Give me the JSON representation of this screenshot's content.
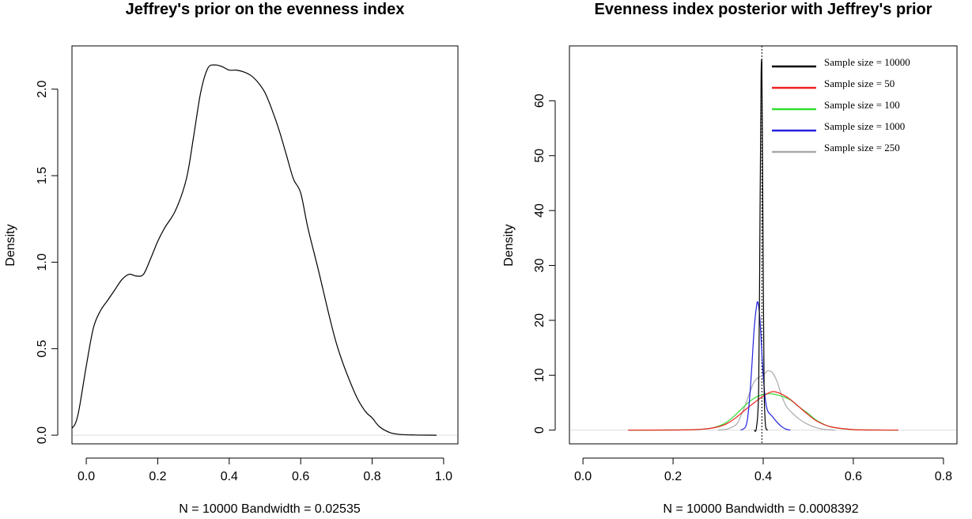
{
  "chart_data": [
    {
      "type": "line",
      "title": "Jeffrey's prior on the evenness index",
      "xlabel": "N = 10000   Bandwidth = 0.02535",
      "ylabel": "Density",
      "xlim": [
        -0.04,
        1.04
      ],
      "ylim": [
        -0.05,
        2.25
      ],
      "xticks": [
        0.0,
        0.2,
        0.4,
        0.6,
        0.8,
        1.0
      ],
      "xtick_labels": [
        "0.0",
        "0.2",
        "0.4",
        "0.6",
        "0.8",
        "1.0"
      ],
      "yticks": [
        0.0,
        0.5,
        1.0,
        1.5,
        2.0
      ],
      "ytick_labels": [
        "0.0",
        "0.5",
        "1.0",
        "1.5",
        "2.0"
      ],
      "baseline": 0,
      "series": [
        {
          "name": "density",
          "color": "#000000",
          "x": [
            -0.04,
            -0.03,
            -0.02,
            0.0,
            0.02,
            0.04,
            0.06,
            0.08,
            0.1,
            0.12,
            0.14,
            0.16,
            0.18,
            0.2,
            0.22,
            0.25,
            0.28,
            0.3,
            0.32,
            0.34,
            0.36,
            0.38,
            0.4,
            0.42,
            0.44,
            0.46,
            0.48,
            0.5,
            0.52,
            0.54,
            0.56,
            0.58,
            0.6,
            0.62,
            0.65,
            0.7,
            0.75,
            0.78,
            0.8,
            0.82,
            0.85,
            0.88,
            0.92,
            0.98
          ],
          "y": [
            0.04,
            0.07,
            0.15,
            0.4,
            0.62,
            0.72,
            0.78,
            0.84,
            0.9,
            0.93,
            0.92,
            0.93,
            1.02,
            1.12,
            1.2,
            1.3,
            1.48,
            1.72,
            1.98,
            2.12,
            2.14,
            2.13,
            2.11,
            2.11,
            2.1,
            2.08,
            2.04,
            1.98,
            1.88,
            1.76,
            1.62,
            1.48,
            1.4,
            1.2,
            0.95,
            0.53,
            0.25,
            0.14,
            0.1,
            0.05,
            0.015,
            0.004,
            0.001,
            0.0
          ]
        }
      ]
    },
    {
      "type": "line",
      "title": "Evenness index posterior with Jeffrey's prior",
      "xlabel": "N = 10000   Bandwidth = 0.0008392",
      "ylabel": "Density",
      "xlim": [
        -0.03,
        0.83
      ],
      "ylim": [
        -2.5,
        70
      ],
      "xticks": [
        0.0,
        0.2,
        0.4,
        0.6,
        0.8
      ],
      "xtick_labels": [
        "0.0",
        "0.2",
        "0.4",
        "0.6",
        "0.8"
      ],
      "yticks": [
        0,
        10,
        20,
        30,
        40,
        50,
        60
      ],
      "ytick_labels": [
        "0",
        "10",
        "20",
        "30",
        "40",
        "50",
        "60"
      ],
      "baseline": 0,
      "vline": {
        "x": 0.397,
        "style": "dotted"
      },
      "series": [
        {
          "name": "Sample size = 250",
          "color": "#aaaaaa",
          "x": [
            0.3,
            0.32,
            0.34,
            0.35,
            0.36,
            0.37,
            0.38,
            0.39,
            0.4,
            0.405,
            0.41,
            0.42,
            0.43,
            0.44,
            0.45,
            0.46,
            0.48,
            0.5,
            0.52,
            0.54,
            0.56
          ],
          "y": [
            0,
            0.2,
            1.0,
            2.5,
            4.5,
            6.8,
            8.8,
            9.6,
            10.0,
            10.4,
            10.8,
            10.5,
            9.0,
            6.5,
            4.5,
            3.5,
            2.0,
            1.0,
            0.4,
            0.1,
            0
          ]
        },
        {
          "name": "Sample size = 100",
          "color": "#33dd33",
          "x": [
            0.1,
            0.2,
            0.25,
            0.28,
            0.3,
            0.32,
            0.34,
            0.36,
            0.38,
            0.4,
            0.42,
            0.44,
            0.46,
            0.48,
            0.5,
            0.52,
            0.55,
            0.6,
            0.65,
            0.7
          ],
          "y": [
            0,
            0.02,
            0.1,
            0.3,
            0.7,
            1.5,
            2.9,
            4.5,
            5.8,
            6.5,
            6.6,
            6.2,
            5.5,
            4.2,
            3.0,
            1.7,
            0.6,
            0.1,
            0.02,
            0
          ]
        },
        {
          "name": "Sample size = 50",
          "color": "#ee2222",
          "x": [
            0.1,
            0.2,
            0.25,
            0.28,
            0.3,
            0.32,
            0.34,
            0.36,
            0.38,
            0.4,
            0.42,
            0.44,
            0.46,
            0.48,
            0.5,
            0.52,
            0.55,
            0.6,
            0.65,
            0.7
          ],
          "y": [
            0,
            0.02,
            0.1,
            0.3,
            0.6,
            1.2,
            2.3,
            3.7,
            5.0,
            6.2,
            7.0,
            6.6,
            5.6,
            4.2,
            2.8,
            1.6,
            0.6,
            0.1,
            0.02,
            0
          ]
        },
        {
          "name": "Sample size = 1000",
          "color": "#2222dd",
          "x": [
            0.35,
            0.36,
            0.365,
            0.37,
            0.375,
            0.38,
            0.385,
            0.388,
            0.392,
            0.395,
            0.4,
            0.405,
            0.41,
            0.42,
            0.43,
            0.44,
            0.45,
            0.46
          ],
          "y": [
            0,
            0.5,
            2.0,
            6.0,
            12.0,
            18.5,
            22.5,
            23.3,
            21.0,
            17.0,
            10.0,
            5.5,
            3.5,
            2.5,
            1.5,
            0.7,
            0.2,
            0
          ]
        },
        {
          "name": "Sample size = 10000",
          "color": "#000000",
          "x": [
            0.38,
            0.385,
            0.39,
            0.393,
            0.395,
            0.396,
            0.397,
            0.398,
            0.4,
            0.402,
            0.405,
            0.41
          ],
          "y": [
            0,
            0.5,
            8.0,
            40.0,
            62.0,
            67.0,
            66.0,
            55.0,
            30.0,
            8.0,
            1.0,
            0
          ]
        }
      ],
      "legend": {
        "position": "top-right",
        "entries": [
          {
            "label": "Sample size = 10000",
            "color": "#000000"
          },
          {
            "label": "Sample size = 50",
            "color": "#ee2222"
          },
          {
            "label": "Sample size = 100",
            "color": "#33dd33"
          },
          {
            "label": "Sample size = 1000",
            "color": "#2222dd"
          },
          {
            "label": "Sample size = 250",
            "color": "#aaaaaa"
          }
        ]
      }
    }
  ]
}
